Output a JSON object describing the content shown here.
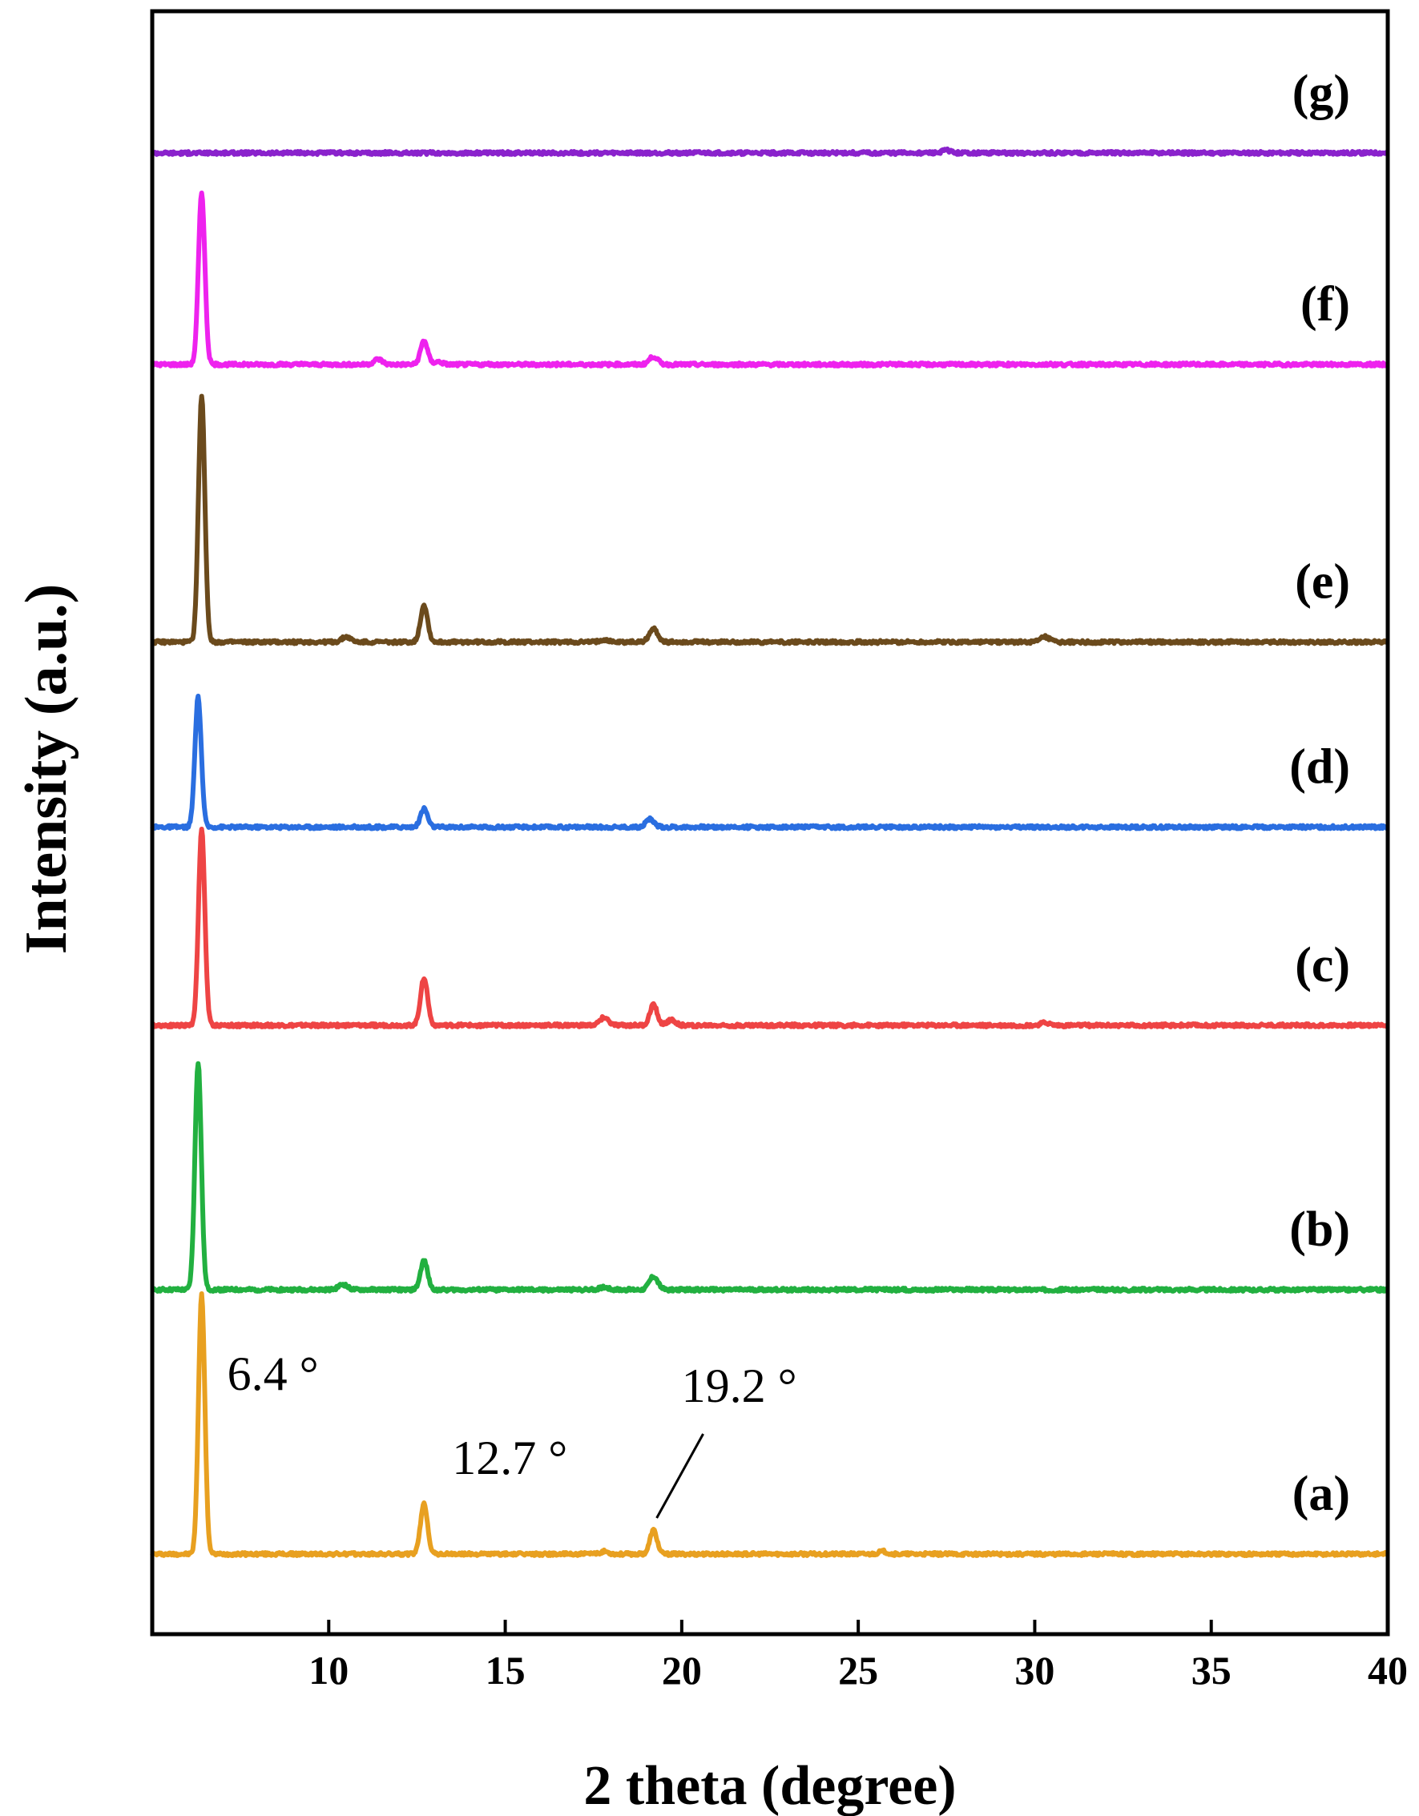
{
  "chart_data": {
    "type": "line",
    "title": "",
    "xlabel": "2 theta (degree)",
    "ylabel": "Intensity (a.u.)",
    "xlim": [
      5,
      40
    ],
    "x_ticks": [
      10,
      15,
      20,
      25,
      30,
      35,
      40
    ],
    "grid": false,
    "legend": "none",
    "series": [
      {
        "name": "(a)",
        "color": "#e8a020",
        "baseline": 0.0,
        "peaks": [
          {
            "x": 6.4,
            "h": 0.98
          },
          {
            "x": 12.7,
            "h": 0.19
          },
          {
            "x": 19.2,
            "h": 0.09
          },
          {
            "x": 17.8,
            "h": 0.01
          },
          {
            "x": 25.7,
            "h": 0.01
          }
        ]
      },
      {
        "name": "(b)",
        "color": "#22b040",
        "baseline": 1.0,
        "peaks": [
          {
            "x": 6.3,
            "h": 0.86
          },
          {
            "x": 12.7,
            "h": 0.11
          },
          {
            "x": 19.2,
            "h": 0.05
          },
          {
            "x": 10.4,
            "h": 0.02
          },
          {
            "x": 17.8,
            "h": 0.01
          }
        ]
      },
      {
        "name": "(c)",
        "color": "#ee4444",
        "baseline": 2.0,
        "peaks": [
          {
            "x": 6.4,
            "h": 0.74
          },
          {
            "x": 12.7,
            "h": 0.18
          },
          {
            "x": 19.2,
            "h": 0.08
          },
          {
            "x": 17.8,
            "h": 0.03
          },
          {
            "x": 19.7,
            "h": 0.02
          },
          {
            "x": 30.3,
            "h": 0.01
          }
        ]
      },
      {
        "name": "(d)",
        "color": "#2a6ee0",
        "baseline": 2.75,
        "peaks": [
          {
            "x": 6.3,
            "h": 0.49
          },
          {
            "x": 12.7,
            "h": 0.07
          },
          {
            "x": 19.1,
            "h": 0.03
          }
        ]
      },
      {
        "name": "(e)",
        "color": "#6b4a1c",
        "baseline": 3.45,
        "peaks": [
          {
            "x": 6.4,
            "h": 0.93
          },
          {
            "x": 12.7,
            "h": 0.14
          },
          {
            "x": 19.2,
            "h": 0.05
          },
          {
            "x": 10.5,
            "h": 0.02
          },
          {
            "x": 17.8,
            "h": 0.01
          },
          {
            "x": 30.3,
            "h": 0.02
          }
        ]
      },
      {
        "name": "(f)",
        "color": "#ee22ee",
        "baseline": 4.5,
        "peaks": [
          {
            "x": 6.4,
            "h": 0.65
          },
          {
            "x": 12.7,
            "h": 0.09
          },
          {
            "x": 19.2,
            "h": 0.03
          },
          {
            "x": 11.4,
            "h": 0.02
          },
          {
            "x": 13.1,
            "h": 0.01
          }
        ]
      },
      {
        "name": "(g)",
        "color": "#8a22cc",
        "baseline": 5.3,
        "peaks": [
          {
            "x": 27.5,
            "h": 0.01
          }
        ]
      }
    ],
    "annotations": [
      {
        "text": "6.4 °",
        "x": 6.4,
        "series": "(a)"
      },
      {
        "text": "12.7 °",
        "x": 12.7,
        "series": "(a)"
      },
      {
        "text": "19.2 °",
        "x": 19.2,
        "series": "(a)"
      }
    ]
  }
}
